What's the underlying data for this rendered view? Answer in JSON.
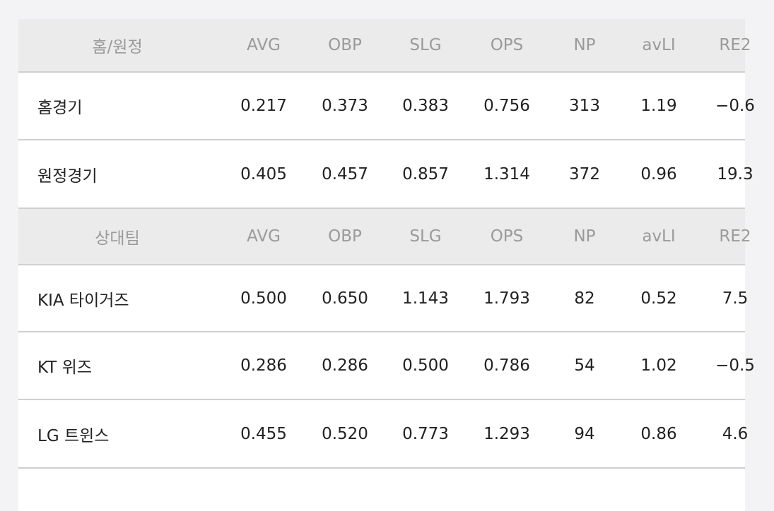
{
  "sections": [
    {
      "header": [
        "홈/원정",
        "AVG",
        "OBP",
        "SLG",
        "OPS",
        "NP",
        "avLI",
        "RE2"
      ],
      "rows": [
        [
          "홈경기",
          "0.217",
          "0.373",
          "0.383",
          "0.756",
          "313",
          "1.19",
          "−0.6"
        ],
        [
          "원정경기",
          "0.405",
          "0.457",
          "0.857",
          "1.314",
          "372",
          "0.96",
          "19.3"
        ]
      ]
    },
    {
      "header": [
        "상대팀",
        "AVG",
        "OBP",
        "SLG",
        "OPS",
        "NP",
        "avLI",
        "RE2"
      ],
      "rows": [
        [
          "KIA 타이거즈",
          "0.500",
          "0.650",
          "1.143",
          "1.793",
          "82",
          "0.52",
          "7.5"
        ],
        [
          "KT 위즈",
          "0.286",
          "0.286",
          "0.500",
          "0.786",
          "54",
          "1.02",
          "−0.5"
        ],
        [
          "LG 트윈스",
          "0.455",
          "0.520",
          "0.773",
          "1.293",
          "94",
          "0.86",
          "4.6"
        ]
      ]
    }
  ]
}
